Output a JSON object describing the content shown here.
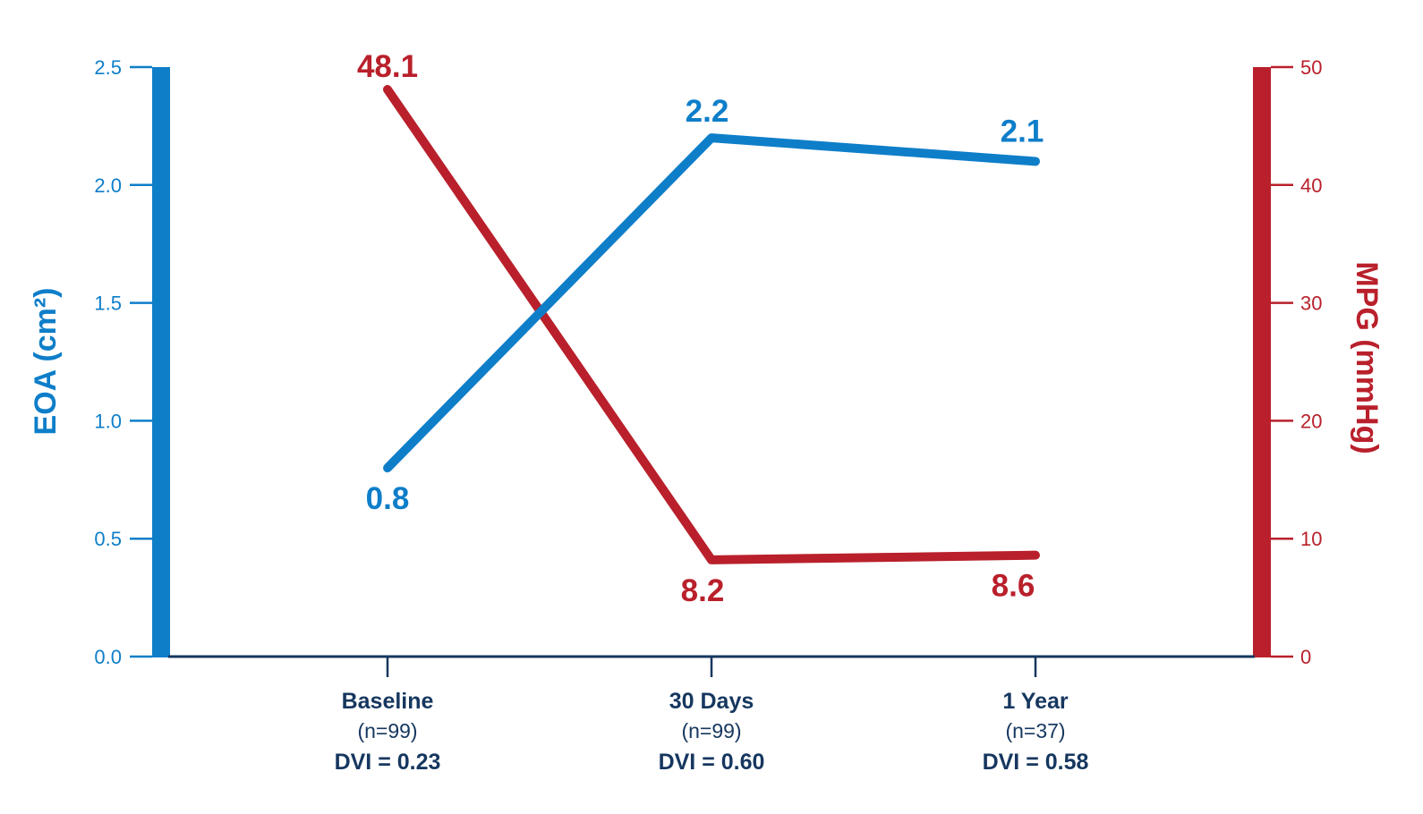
{
  "chart_data": {
    "type": "line",
    "categories": [
      {
        "label": "Baseline",
        "n": "(n=99)",
        "dvi": "DVI = 0.23"
      },
      {
        "label": "30 Days",
        "n": "(n=99)",
        "dvi": "DVI = 0.60"
      },
      {
        "label": "1 Year",
        "n": "(n=37)",
        "dvi": "DVI = 0.58"
      }
    ],
    "series": [
      {
        "name": "EOA",
        "axis": "left",
        "values": [
          0.8,
          2.2,
          2.1
        ],
        "point_labels": [
          "0.8",
          "2.2",
          "2.1"
        ],
        "color": "#0e7ec9"
      },
      {
        "name": "MPG",
        "axis": "right",
        "values": [
          48.1,
          8.2,
          8.6
        ],
        "point_labels": [
          "48.1",
          "8.2",
          "8.6"
        ],
        "color": "#b9202b"
      }
    ],
    "left_axis": {
      "title": "EOA (cm²)",
      "ticks": [
        "2.5",
        "2.0",
        "1.5",
        "1.0",
        "0.5",
        "0.0"
      ],
      "range": [
        0,
        2.5
      ],
      "color": "#0e7ec9"
    },
    "right_axis": {
      "title": "MPG (mmHg)",
      "ticks": [
        "50",
        "40",
        "30",
        "20",
        "10",
        "0"
      ],
      "range": [
        0,
        50
      ],
      "color": "#b9202b"
    },
    "baseline_color": "#16375f",
    "legend": "none",
    "grid": "off"
  }
}
